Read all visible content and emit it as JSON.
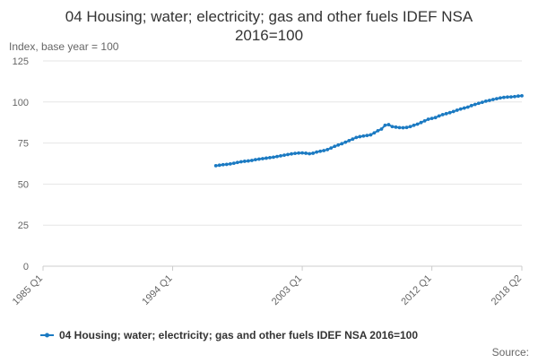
{
  "chart_data": {
    "type": "line",
    "title_line1": "04 Housing; water; electricity; gas and other fuels IDEF NSA",
    "title_line2": "2016=100",
    "ylabel": "Index, base year = 100",
    "source_label": "Source:",
    "ylim": [
      0,
      125
    ],
    "yticks": [
      "0",
      "25",
      "50",
      "75",
      "100",
      "125"
    ],
    "xticks": [
      {
        "label": "1985 Q1",
        "q": 0
      },
      {
        "label": "1994 Q1",
        "q": 36
      },
      {
        "label": "2003 Q1",
        "q": 72
      },
      {
        "label": "2012 Q1",
        "q": 108
      },
      {
        "label": "2018 Q2",
        "q": 133
      }
    ],
    "x_first_quarter": "1985 Q1",
    "series": [
      {
        "name": "04 Housing; water; electricity; gas and other fuels IDEF NSA 2016=100",
        "color": "#1b7ac2",
        "start_q": 48,
        "values": [
          61.2,
          61.5,
          61.8,
          62.0,
          62.3,
          62.7,
          63.2,
          63.6,
          63.9,
          64.1,
          64.4,
          64.9,
          65.2,
          65.5,
          65.8,
          66.1,
          66.4,
          66.8,
          67.2,
          67.6,
          68.0,
          68.4,
          68.7,
          68.9,
          69.0,
          68.8,
          68.5,
          68.8,
          69.5,
          70.0,
          70.4,
          71.0,
          72.0,
          73.0,
          73.8,
          74.6,
          75.5,
          76.5,
          77.4,
          78.4,
          78.9,
          79.3,
          79.6,
          80.0,
          81.2,
          82.5,
          83.5,
          85.8,
          86.2,
          85.0,
          84.7,
          84.4,
          84.3,
          84.5,
          85.0,
          85.8,
          86.5,
          87.5,
          88.5,
          89.5,
          90.0,
          90.5,
          91.5,
          92.3,
          92.9,
          93.5,
          94.2,
          95.0,
          95.7,
          96.3,
          96.9,
          97.8,
          98.5,
          99.2,
          99.8,
          100.5,
          101.0,
          101.5,
          102.0,
          102.5,
          102.8,
          103.0,
          103.1,
          103.3,
          103.6,
          103.8
        ]
      }
    ]
  }
}
